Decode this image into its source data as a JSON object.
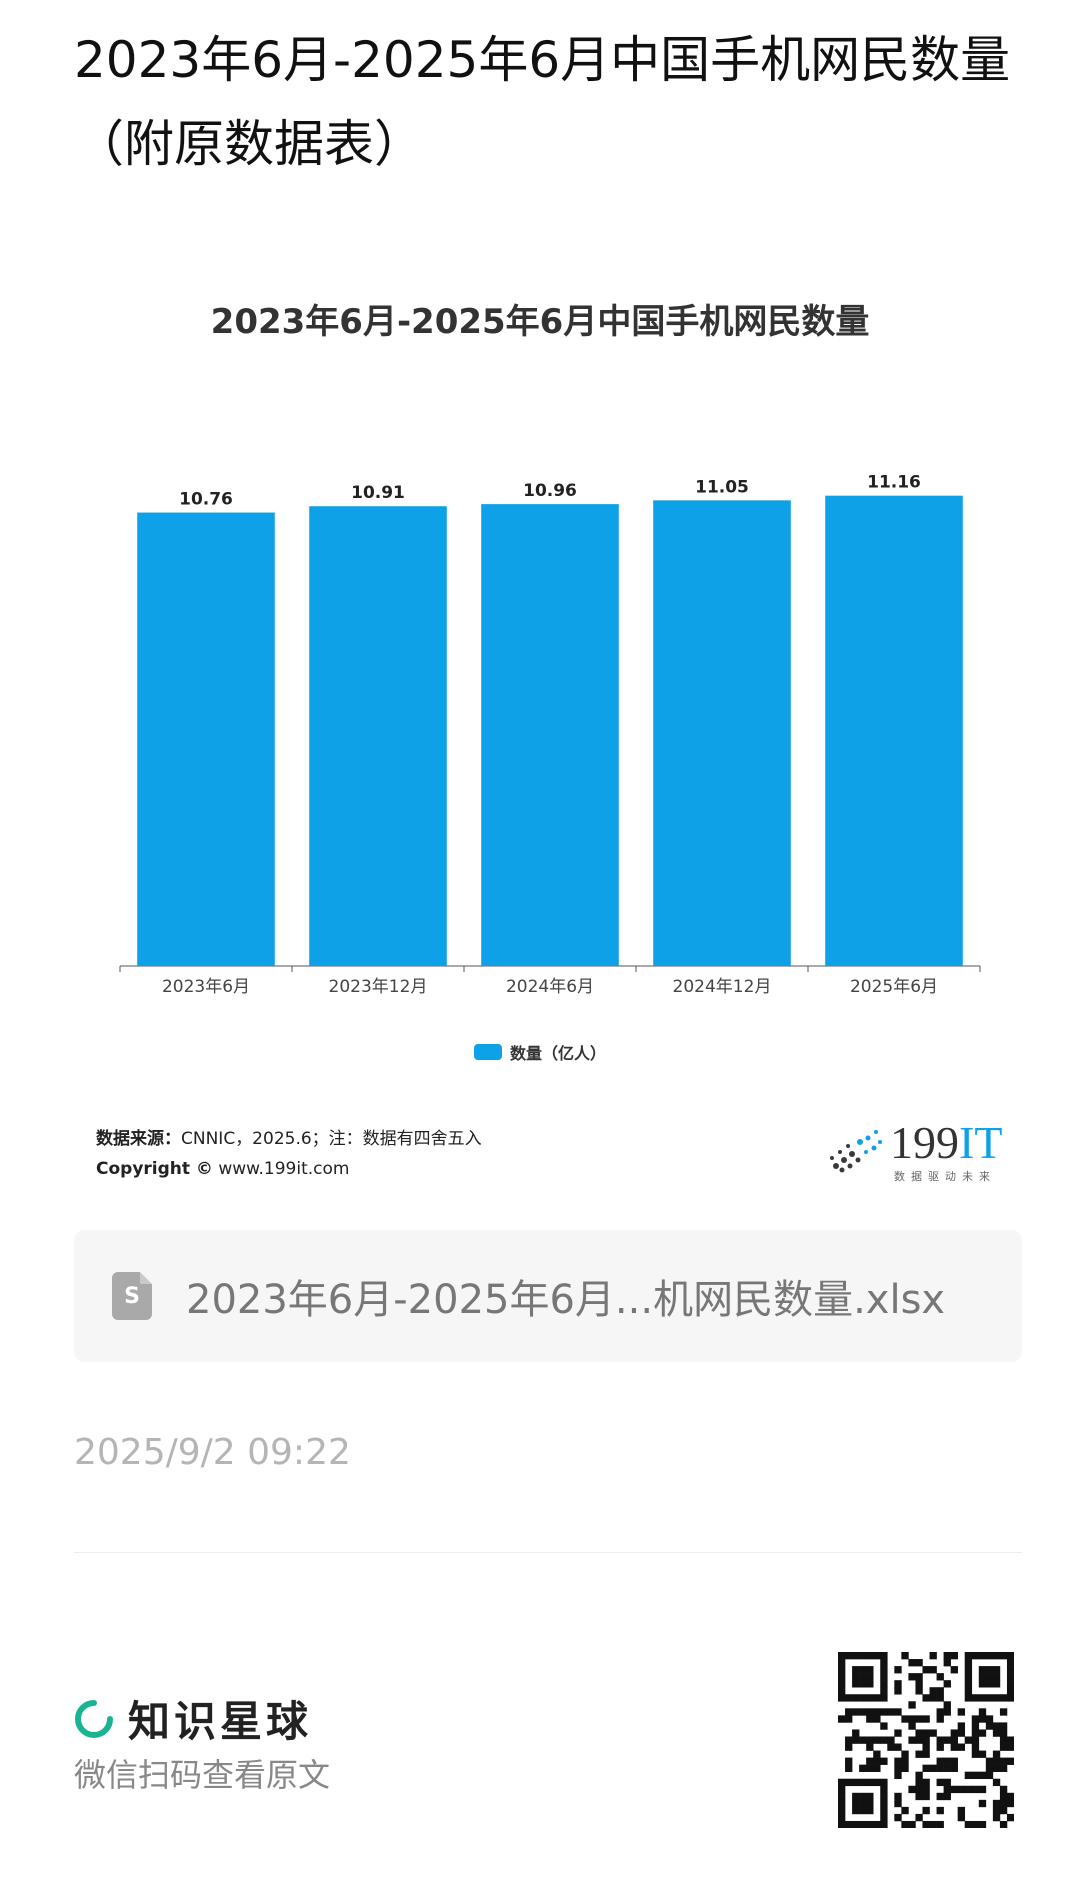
{
  "page": {
    "title": "2023年6月-2025年6月中国手机网民数量（附原数据表）"
  },
  "chart": {
    "title": "2023年6月-2025年6月中国手机网民数量",
    "legend_label": "数量（亿人）",
    "source_label": "数据来源：",
    "source_text": "CNNIC，2025.6；注：数据有四舍五入",
    "copyright_label": "Copyright ©",
    "copyright_text": "www.199it.com",
    "brand_number": "199",
    "brand_it": "IT",
    "brand_tagline": "数据驱动未来"
  },
  "chart_data": {
    "type": "bar",
    "title": "2023年6月-2025年6月中国手机网民数量",
    "categories": [
      "2023年6月",
      "2023年12月",
      "2024年6月",
      "2024年12月",
      "2025年6月"
    ],
    "series": [
      {
        "name": "数量（亿人）",
        "values": [
          10.76,
          10.91,
          10.96,
          11.05,
          11.16
        ],
        "color": "#0ea1e8"
      }
    ],
    "ylim": [
      0,
      11.2
    ],
    "grid": false,
    "legend_position": "bottom"
  },
  "file": {
    "icon": "spreadsheet-file-icon",
    "icon_letter": "S",
    "name": "2023年6月-2025年6月...机网民数量.xlsx"
  },
  "meta": {
    "timestamp": "2025/9/2 09:22"
  },
  "footer": {
    "app_name": "知识星球",
    "scan_hint": "微信扫码查看原文",
    "accent_color": "#1ab394"
  }
}
